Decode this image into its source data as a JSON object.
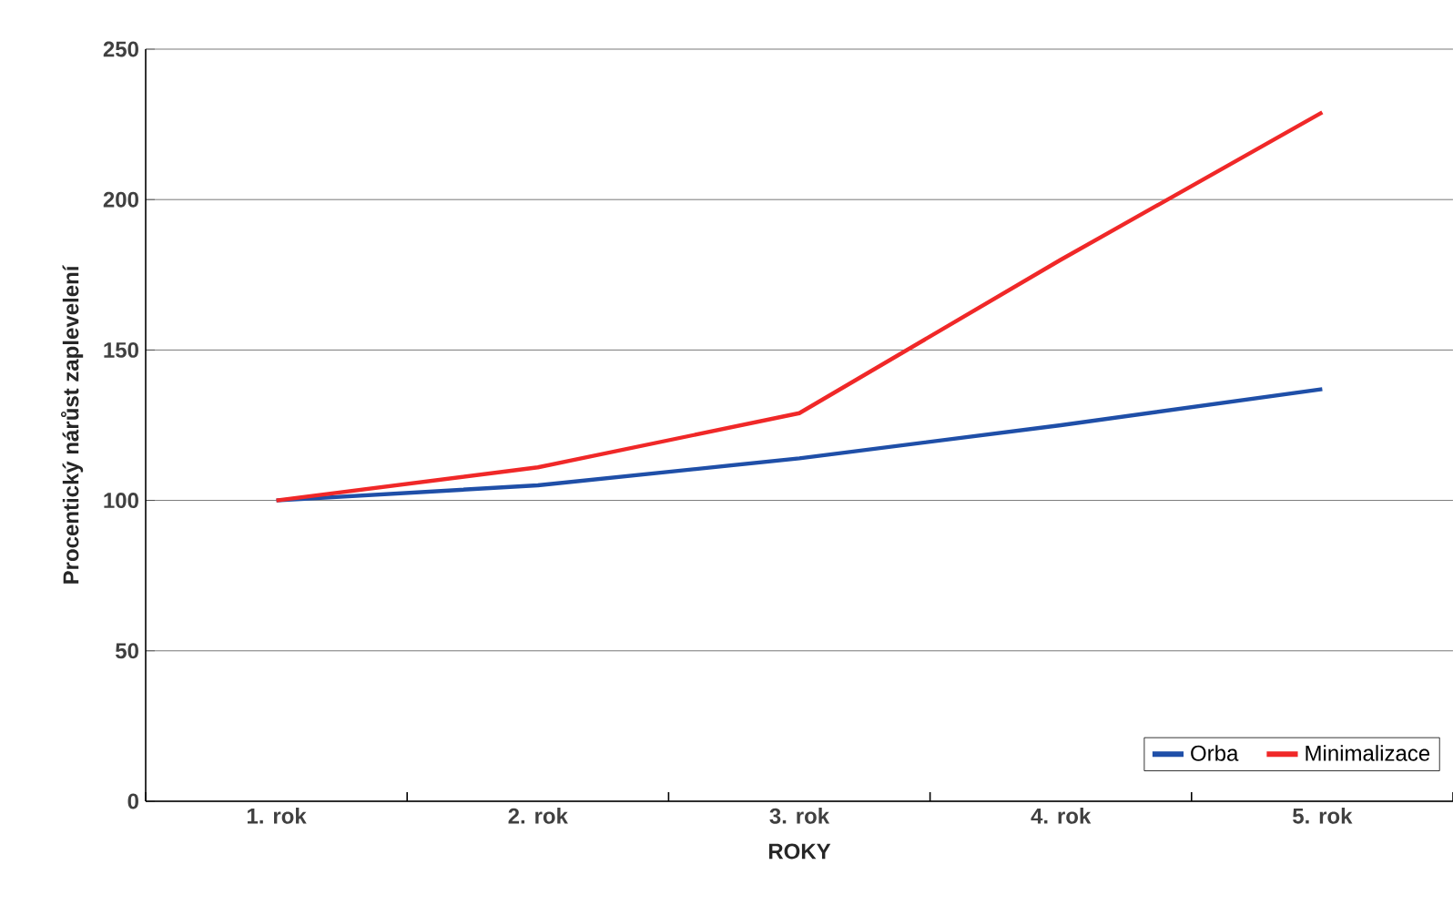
{
  "chart_data": {
    "type": "line",
    "xlabel": "ROKY",
    "ylabel": "Procentický nárůst zaplevelení",
    "categories": [
      "1. rok",
      "2. rok",
      "3. rok",
      "4. rok",
      "5. rok"
    ],
    "series": [
      {
        "name": "Orba",
        "color": "#1f4fa8",
        "values": [
          100,
          105,
          114,
          125,
          137
        ]
      },
      {
        "name": "Minimalizace",
        "color": "#f02828",
        "values": [
          100,
          111,
          129,
          180,
          229
        ]
      }
    ],
    "ylim": [
      0,
      250
    ],
    "yticks": [
      0,
      50,
      100,
      150,
      200,
      250
    ],
    "grid": "y",
    "legend": "bottom right",
    "marker": "none",
    "line_style": "solid"
  }
}
